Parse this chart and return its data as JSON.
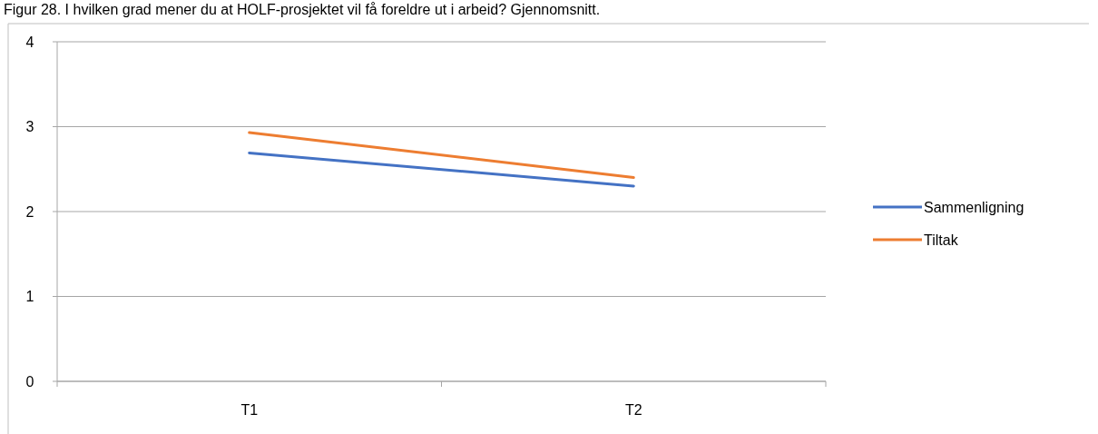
{
  "chart_data": {
    "type": "line",
    "title": "Figur 28. I hvilken grad mener du at HOLF-prosjektet vil få foreldre ut i arbeid? Gjennomsnitt.",
    "categories": [
      "T1",
      "T2"
    ],
    "series": [
      {
        "name": "Sammenligning",
        "color": "#4472c4",
        "values": [
          2.69,
          2.3
        ]
      },
      {
        "name": "Tiltak",
        "color": "#ed7d31",
        "values": [
          2.93,
          2.4
        ]
      }
    ],
    "ylim": [
      0,
      4
    ],
    "yticks": [
      0,
      1,
      2,
      3,
      4
    ],
    "grid": "y",
    "legend": "right",
    "marker": "none"
  }
}
